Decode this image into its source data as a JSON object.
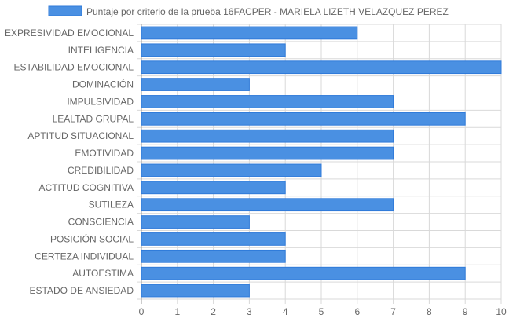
{
  "chart_data": {
    "type": "bar",
    "orientation": "horizontal",
    "categories": [
      "EXPRESIVIDAD EMOCIONAL",
      "INTELIGENCIA",
      "ESTABILIDAD EMOCIONAL",
      "DOMINACIÓN",
      "IMPULSIVIDAD",
      "LEALTAD GRUPAL",
      "APTITUD SITUACIONAL",
      "EMOTIVIDAD",
      "CREDIBILIDAD",
      "ACTITUD COGNITIVA",
      "SUTILEZA",
      "CONSCIENCIA",
      "POSICIÓN SOCIAL",
      "CERTEZA INDIVIDUAL",
      "AUTOESTIMA",
      "ESTADO DE ANSIEDAD"
    ],
    "series": [
      {
        "name": "Puntaje por criterio de la prueba 16FACPER - MARIELA LIZETH VELAZQUEZ PEREZ",
        "values": [
          6,
          4,
          10,
          3,
          7,
          9,
          7,
          7,
          5,
          4,
          7,
          3,
          4,
          4,
          9,
          3
        ],
        "color": "#4a90e2",
        "border_color": "#2f7ad9"
      }
    ],
    "xlim": [
      0,
      10
    ],
    "xticks": [
      "0",
      "1",
      "2",
      "3",
      "4",
      "5",
      "6",
      "7",
      "8",
      "9",
      "10"
    ],
    "grid": true,
    "legend_position": "top",
    "colors": {
      "grid": "#d9d9d9",
      "axis": "#999999",
      "text": "#666666"
    }
  }
}
